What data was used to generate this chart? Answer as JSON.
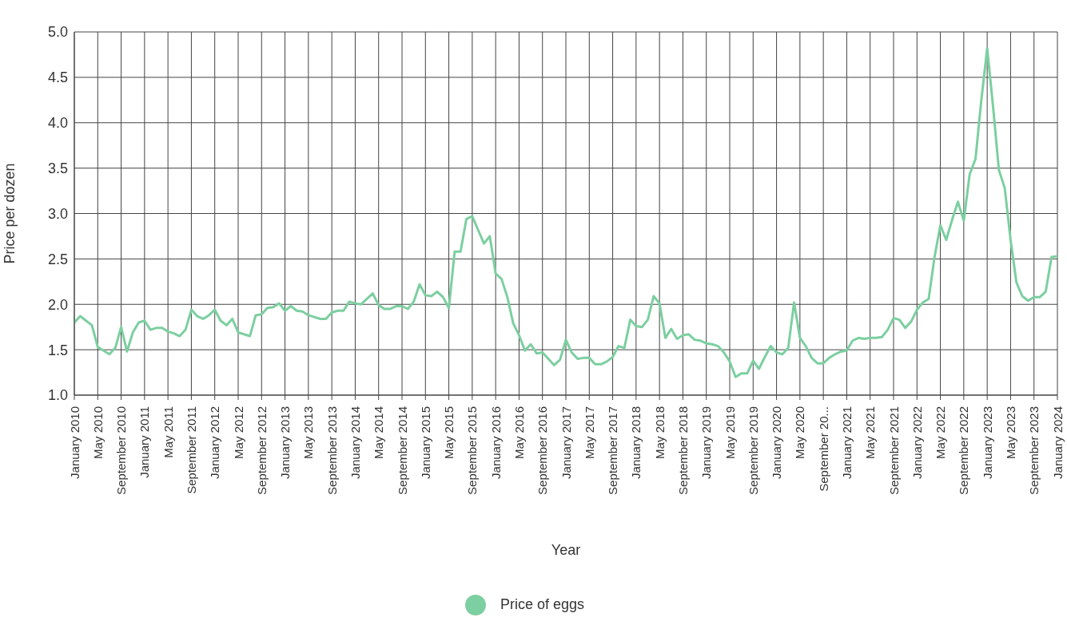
{
  "chart_data": {
    "type": "line",
    "xlabel": "Year",
    "ylabel": "Price per dozen",
    "categories": [
      "January 2010",
      null,
      null,
      null,
      "May 2010",
      null,
      null,
      null,
      "September 2010",
      null,
      null,
      null,
      "January 2011",
      null,
      null,
      null,
      "May 2011",
      null,
      null,
      null,
      "September 2011",
      null,
      null,
      null,
      "January 2012",
      null,
      null,
      null,
      "May 2012",
      null,
      null,
      null,
      "September 2012",
      null,
      null,
      null,
      "January 2013",
      null,
      null,
      null,
      "May 2013",
      null,
      null,
      null,
      "September 2013",
      null,
      null,
      null,
      "January 2014",
      null,
      null,
      null,
      "May 2014",
      null,
      null,
      null,
      "September 2014",
      null,
      null,
      null,
      "January 2015",
      null,
      null,
      null,
      "May 2015",
      null,
      null,
      null,
      "September 2015",
      null,
      null,
      null,
      "January 2016",
      null,
      null,
      null,
      "May 2016",
      null,
      null,
      null,
      "September 2016",
      null,
      null,
      null,
      "January 2017",
      null,
      null,
      null,
      "May 2017",
      null,
      null,
      null,
      "September 2017",
      null,
      null,
      null,
      "January 2018",
      null,
      null,
      null,
      "May 2018",
      null,
      null,
      null,
      "September 2018",
      null,
      null,
      null,
      "January 2019",
      null,
      null,
      null,
      "May 2019",
      null,
      null,
      null,
      "September 2019",
      null,
      null,
      null,
      "January 2020",
      null,
      null,
      null,
      "May 2020",
      null,
      null,
      null,
      "September 20...",
      null,
      null,
      null,
      "January 2021",
      null,
      null,
      null,
      "May 2021",
      null,
      null,
      null,
      "September 2021",
      null,
      null,
      null,
      "January 2022",
      null,
      null,
      null,
      "May 2022",
      null,
      null,
      null,
      "September 2022",
      null,
      null,
      null,
      "January 2023",
      null,
      null,
      null,
      "May 2023",
      null,
      null,
      null,
      "September 2023",
      null,
      null,
      null,
      "January 2024"
    ],
    "series": [
      {
        "name": "Price of eggs",
        "color": "#7ccfa0",
        "values": [
          1.8,
          1.87,
          1.82,
          1.77,
          1.53,
          1.49,
          1.45,
          1.52,
          1.75,
          1.48,
          1.69,
          1.8,
          1.82,
          1.72,
          1.74,
          1.74,
          1.7,
          1.68,
          1.65,
          1.72,
          1.94,
          1.87,
          1.84,
          1.88,
          1.94,
          1.82,
          1.77,
          1.84,
          1.69,
          1.67,
          1.65,
          1.88,
          1.89,
          1.96,
          1.97,
          2.01,
          1.93,
          1.98,
          1.93,
          1.92,
          1.88,
          1.86,
          1.84,
          1.84,
          1.91,
          1.93,
          1.93,
          2.03,
          2.01,
          2.0,
          2.06,
          2.12,
          1.99,
          1.95,
          1.95,
          1.98,
          1.98,
          1.95,
          2.03,
          2.22,
          2.1,
          2.09,
          2.14,
          2.08,
          1.96,
          2.58,
          2.58,
          2.94,
          2.97,
          2.82,
          2.67,
          2.75,
          2.34,
          2.28,
          2.08,
          1.79,
          1.66,
          1.49,
          1.56,
          1.46,
          1.47,
          1.4,
          1.33,
          1.39,
          1.61,
          1.47,
          1.4,
          1.41,
          1.41,
          1.34,
          1.34,
          1.37,
          1.42,
          1.54,
          1.52,
          1.83,
          1.76,
          1.75,
          1.83,
          2.09,
          2.01,
          1.63,
          1.73,
          1.62,
          1.66,
          1.67,
          1.61,
          1.6,
          1.57,
          1.56,
          1.54,
          1.47,
          1.37,
          1.2,
          1.24,
          1.24,
          1.38,
          1.29,
          1.42,
          1.54,
          1.47,
          1.45,
          1.52,
          2.02,
          1.63,
          1.54,
          1.41,
          1.35,
          1.35,
          1.41,
          1.45,
          1.48,
          1.49,
          1.6,
          1.63,
          1.62,
          1.63,
          1.63,
          1.64,
          1.72,
          1.85,
          1.83,
          1.74,
          1.81,
          1.94,
          2.02,
          2.06,
          2.52,
          2.87,
          2.71,
          2.93,
          3.13,
          2.92,
          3.43,
          3.6,
          4.25,
          4.82,
          4.18,
          3.48,
          3.28,
          2.71,
          2.24,
          2.09,
          2.04,
          2.08,
          2.08,
          2.14,
          2.52,
          2.53
        ]
      }
    ],
    "ylim": [
      1,
      5
    ],
    "yticks": [
      {
        "value": 1,
        "label": "1.0"
      },
      1.5,
      {
        "value": 2,
        "label": "2.0"
      },
      2.5,
      {
        "value": 3,
        "label": "3.0"
      },
      3.5,
      {
        "value": 4,
        "label": "4.0"
      },
      4.5,
      {
        "value": 5,
        "label": "5.0"
      }
    ],
    "grid": true,
    "legend": "bottom",
    "marker": "none",
    "line_style": "solid"
  }
}
